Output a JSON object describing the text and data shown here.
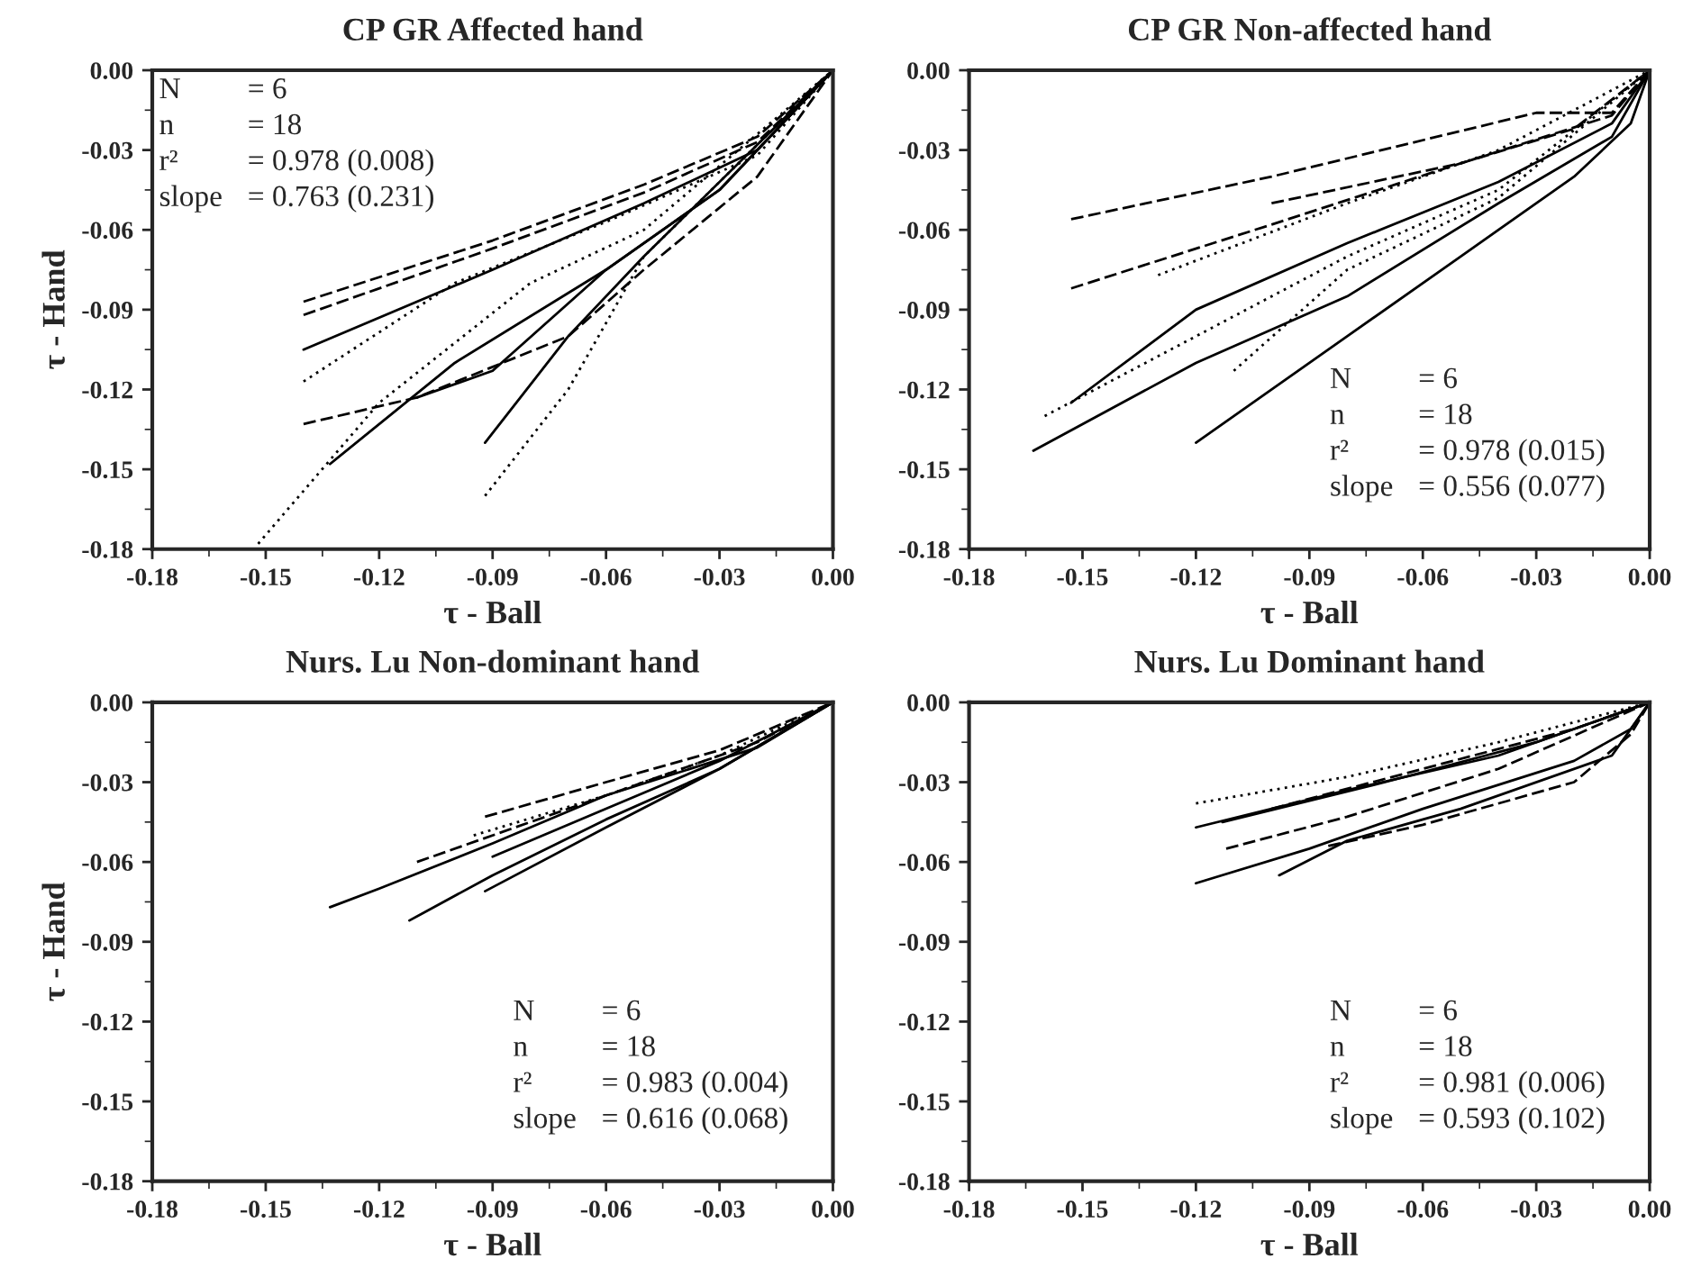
{
  "chart_data": [
    {
      "type": "line",
      "title": "CP GR Affected hand",
      "xlabel": "τ - Ball",
      "ylabel": "τ - Hand",
      "xlim": [
        -0.18,
        0
      ],
      "ylim": [
        -0.18,
        0
      ],
      "xticks": [
        {
          "value": -0.18,
          "label": "-0.18"
        },
        {
          "value": -0.15,
          "label": "-0.15"
        },
        {
          "value": -0.12,
          "label": "-0.12"
        },
        {
          "value": -0.09,
          "label": "-0.09"
        },
        {
          "value": -0.06,
          "label": "-0.06"
        },
        {
          "value": -0.03,
          "label": "-0.03"
        },
        {
          "value": 0,
          "label": "0.00"
        }
      ],
      "yticks": [
        {
          "value": -0.18,
          "label": "-0.18"
        },
        {
          "value": -0.15,
          "label": "-0.15"
        },
        {
          "value": -0.12,
          "label": "-0.12"
        },
        {
          "value": -0.09,
          "label": "-0.09"
        },
        {
          "value": -0.06,
          "label": "-0.06"
        },
        {
          "value": -0.03,
          "label": "-0.03"
        },
        {
          "value": 0,
          "label": "0.00"
        }
      ],
      "grid": false,
      "marker": "none",
      "annotations": [
        "N = 6",
        "n = 18",
        "r² = 0.978 (0.008)",
        "slope = 0.763 (0.231)"
      ],
      "series": [
        {
          "color": "#000000",
          "line_style": "dashed",
          "x": [
            -0.14,
            -0.09,
            -0.05,
            -0.02,
            0
          ],
          "values": [
            -0.087,
            -0.064,
            -0.043,
            -0.025,
            0
          ]
        },
        {
          "color": "#000000",
          "line_style": "dashed",
          "x": [
            -0.14,
            -0.09,
            -0.05,
            -0.02,
            0
          ],
          "values": [
            -0.092,
            -0.067,
            -0.046,
            -0.027,
            0
          ]
        },
        {
          "color": "#000000",
          "line_style": "solid",
          "x": [
            -0.14,
            -0.09,
            -0.05,
            -0.02,
            0
          ],
          "values": [
            -0.105,
            -0.075,
            -0.05,
            -0.03,
            0
          ]
        },
        {
          "color": "#000000",
          "line_style": "dotted",
          "x": [
            -0.14,
            -0.1,
            -0.06,
            -0.02,
            0
          ],
          "values": [
            -0.117,
            -0.08,
            -0.057,
            -0.032,
            0
          ]
        },
        {
          "color": "#000000",
          "line_style": "dashed",
          "x": [
            -0.14,
            -0.11,
            -0.07,
            -0.05,
            -0.02,
            0
          ],
          "values": [
            -0.133,
            -0.123,
            -0.1,
            -0.075,
            -0.04,
            0
          ]
        },
        {
          "color": "#000000",
          "line_style": "solid",
          "x": [
            -0.133,
            -0.1,
            -0.06,
            -0.03,
            0
          ],
          "values": [
            -0.148,
            -0.11,
            -0.075,
            -0.045,
            0
          ]
        },
        {
          "color": "#000000",
          "line_style": "dotted",
          "x": [
            -0.152,
            -0.12,
            -0.08,
            -0.05,
            0
          ],
          "values": [
            -0.178,
            -0.125,
            -0.08,
            -0.06,
            0
          ]
        },
        {
          "color": "#000000",
          "line_style": "solid",
          "x": [
            -0.11,
            -0.09,
            -0.06,
            -0.03,
            0
          ],
          "values": [
            -0.123,
            -0.113,
            -0.075,
            -0.045,
            0
          ]
        },
        {
          "color": "#000000",
          "line_style": "solid",
          "x": [
            -0.092,
            -0.07,
            -0.05,
            0
          ],
          "values": [
            -0.14,
            -0.1,
            -0.07,
            0
          ]
        },
        {
          "color": "#000000",
          "line_style": "dotted",
          "x": [
            -0.092,
            -0.07,
            -0.05,
            0
          ],
          "values": [
            -0.16,
            -0.12,
            -0.07,
            0
          ]
        }
      ]
    },
    {
      "type": "line",
      "title": "CP GR Non-affected hand",
      "xlabel": "τ - Ball",
      "xlim": [
        -0.18,
        0
      ],
      "ylim": [
        -0.18,
        0
      ],
      "xticks": [
        {
          "value": -0.18,
          "label": "-0.18"
        },
        {
          "value": -0.15,
          "label": "-0.15"
        },
        {
          "value": -0.12,
          "label": "-0.12"
        },
        {
          "value": -0.09,
          "label": "-0.09"
        },
        {
          "value": -0.06,
          "label": "-0.06"
        },
        {
          "value": -0.03,
          "label": "-0.03"
        },
        {
          "value": 0,
          "label": "0.00"
        }
      ],
      "yticks": [
        {
          "value": -0.18,
          "label": "-0.18"
        },
        {
          "value": -0.15,
          "label": "-0.15"
        },
        {
          "value": -0.12,
          "label": "-0.12"
        },
        {
          "value": -0.09,
          "label": "-0.09"
        },
        {
          "value": -0.06,
          "label": "-0.06"
        },
        {
          "value": -0.03,
          "label": "-0.03"
        },
        {
          "value": 0,
          "label": "0.00"
        }
      ],
      "grid": false,
      "marker": "none",
      "annotations": [
        "N = 6",
        "n = 18",
        "r² = 0.978 (0.015)",
        "slope = 0.556 (0.077)"
      ],
      "series": [
        {
          "color": "#000000",
          "line_style": "dashed",
          "x": [
            -0.153,
            -0.1,
            -0.03,
            -0.01,
            0
          ],
          "values": [
            -0.056,
            -0.04,
            -0.016,
            -0.016,
            0
          ]
        },
        {
          "color": "#000000",
          "line_style": "dashed",
          "x": [
            -0.153,
            -0.1,
            -0.05,
            -0.01,
            0
          ],
          "values": [
            -0.082,
            -0.058,
            -0.035,
            -0.017,
            0
          ]
        },
        {
          "color": "#000000",
          "line_style": "dotted",
          "x": [
            -0.13,
            -0.08,
            -0.04,
            0
          ],
          "values": [
            -0.077,
            -0.05,
            -0.03,
            0
          ]
        },
        {
          "color": "#000000",
          "line_style": "solid",
          "x": [
            -0.153,
            -0.12,
            -0.08,
            -0.04,
            -0.01,
            0
          ],
          "values": [
            -0.125,
            -0.09,
            -0.065,
            -0.042,
            -0.02,
            0
          ]
        },
        {
          "color": "#000000",
          "line_style": "dotted",
          "x": [
            -0.16,
            -0.12,
            -0.08,
            -0.04,
            0
          ],
          "values": [
            -0.13,
            -0.1,
            -0.07,
            -0.045,
            0
          ]
        },
        {
          "color": "#000000",
          "line_style": "solid",
          "x": [
            -0.163,
            -0.12,
            -0.08,
            -0.04,
            -0.01,
            0
          ],
          "values": [
            -0.143,
            -0.11,
            -0.085,
            -0.05,
            -0.025,
            0
          ]
        },
        {
          "color": "#000000",
          "line_style": "dotted",
          "x": [
            -0.11,
            -0.08,
            -0.04,
            0
          ],
          "values": [
            -0.113,
            -0.075,
            -0.048,
            0
          ]
        },
        {
          "color": "#000000",
          "line_style": "solid",
          "x": [
            -0.12,
            -0.08,
            -0.05,
            -0.02,
            -0.005,
            0
          ],
          "values": [
            -0.14,
            -0.1,
            -0.07,
            -0.04,
            -0.02,
            0
          ]
        },
        {
          "color": "#000000",
          "line_style": "dashed",
          "x": [
            -0.1,
            -0.05,
            -0.02,
            0
          ],
          "values": [
            -0.05,
            -0.035,
            -0.022,
            0
          ]
        }
      ]
    },
    {
      "type": "line",
      "title": "Nurs. Lu Non-dominant hand",
      "xlabel": "τ - Ball",
      "ylabel": "τ - Hand",
      "xlim": [
        -0.18,
        0
      ],
      "ylim": [
        -0.18,
        0
      ],
      "xticks": [
        {
          "value": -0.18,
          "label": "-0.18"
        },
        {
          "value": -0.15,
          "label": "-0.15"
        },
        {
          "value": -0.12,
          "label": "-0.12"
        },
        {
          "value": -0.09,
          "label": "-0.09"
        },
        {
          "value": -0.06,
          "label": "-0.06"
        },
        {
          "value": -0.03,
          "label": "-0.03"
        },
        {
          "value": 0,
          "label": "0.00"
        }
      ],
      "yticks": [
        {
          "value": -0.18,
          "label": "-0.18"
        },
        {
          "value": -0.15,
          "label": "-0.15"
        },
        {
          "value": -0.12,
          "label": "-0.12"
        },
        {
          "value": -0.09,
          "label": "-0.09"
        },
        {
          "value": -0.06,
          "label": "-0.06"
        },
        {
          "value": -0.03,
          "label": "-0.03"
        },
        {
          "value": 0,
          "label": "0.00"
        }
      ],
      "grid": false,
      "marker": "none",
      "annotations": [
        "N = 6",
        "n = 18",
        "r² = 0.983 (0.004)",
        "slope = 0.616 (0.068)"
      ],
      "series": [
        {
          "color": "#000000",
          "line_style": "solid",
          "x": [
            -0.133,
            -0.12,
            -0.09,
            -0.06,
            -0.02,
            0
          ],
          "values": [
            -0.077,
            -0.07,
            -0.053,
            -0.035,
            -0.017,
            0
          ]
        },
        {
          "color": "#000000",
          "line_style": "solid",
          "x": [
            -0.112,
            -0.09,
            -0.06,
            -0.03,
            0
          ],
          "values": [
            -0.082,
            -0.065,
            -0.044,
            -0.025,
            0
          ]
        },
        {
          "color": "#000000",
          "line_style": "solid",
          "x": [
            -0.092,
            -0.06,
            -0.03,
            0
          ],
          "values": [
            -0.071,
            -0.047,
            -0.025,
            0
          ]
        },
        {
          "color": "#000000",
          "line_style": "dashed",
          "x": [
            -0.092,
            -0.06,
            -0.03,
            0
          ],
          "values": [
            -0.043,
            -0.03,
            -0.018,
            0
          ]
        },
        {
          "color": "#000000",
          "line_style": "dashed",
          "x": [
            -0.11,
            -0.08,
            -0.05,
            -0.02,
            0
          ],
          "values": [
            -0.06,
            -0.045,
            -0.03,
            -0.015,
            0
          ]
        },
        {
          "color": "#000000",
          "line_style": "dotted",
          "x": [
            -0.095,
            -0.06,
            -0.03,
            0
          ],
          "values": [
            -0.05,
            -0.035,
            -0.02,
            0
          ]
        },
        {
          "color": "#000000",
          "line_style": "solid",
          "x": [
            -0.09,
            -0.06,
            -0.03,
            0
          ],
          "values": [
            -0.058,
            -0.04,
            -0.022,
            0
          ]
        }
      ]
    },
    {
      "type": "line",
      "title": "Nurs. Lu Dominant hand",
      "xlabel": "τ - Ball",
      "xlim": [
        -0.18,
        0
      ],
      "ylim": [
        -0.18,
        0
      ],
      "xticks": [
        {
          "value": -0.18,
          "label": "-0.18"
        },
        {
          "value": -0.15,
          "label": "-0.15"
        },
        {
          "value": -0.12,
          "label": "-0.12"
        },
        {
          "value": -0.09,
          "label": "-0.09"
        },
        {
          "value": -0.06,
          "label": "-0.06"
        },
        {
          "value": -0.03,
          "label": "-0.03"
        },
        {
          "value": 0,
          "label": "0.00"
        }
      ],
      "yticks": [
        {
          "value": -0.18,
          "label": "-0.18"
        },
        {
          "value": -0.15,
          "label": "-0.15"
        },
        {
          "value": -0.12,
          "label": "-0.12"
        },
        {
          "value": -0.09,
          "label": "-0.09"
        },
        {
          "value": -0.06,
          "label": "-0.06"
        },
        {
          "value": -0.03,
          "label": "-0.03"
        },
        {
          "value": 0,
          "label": "0.00"
        }
      ],
      "grid": false,
      "marker": "none",
      "annotations": [
        "N = 6",
        "n = 18",
        "r² = 0.981 (0.006)",
        "slope = 0.593 (0.102)"
      ],
      "series": [
        {
          "color": "#000000",
          "line_style": "dotted",
          "x": [
            -0.12,
            -0.08,
            -0.04,
            0
          ],
          "values": [
            -0.038,
            -0.028,
            -0.015,
            0
          ]
        },
        {
          "color": "#000000",
          "line_style": "solid",
          "x": [
            -0.12,
            -0.08,
            -0.04,
            0
          ],
          "values": [
            -0.047,
            -0.033,
            -0.02,
            0
          ]
        },
        {
          "color": "#000000",
          "line_style": "solid",
          "x": [
            -0.113,
            -0.07,
            -0.03,
            0
          ],
          "values": [
            -0.045,
            -0.03,
            -0.015,
            0
          ]
        },
        {
          "color": "#000000",
          "line_style": "dashed",
          "x": [
            -0.112,
            -0.08,
            -0.04,
            0
          ],
          "values": [
            -0.055,
            -0.043,
            -0.025,
            0
          ]
        },
        {
          "color": "#000000",
          "line_style": "solid",
          "x": [
            -0.12,
            -0.09,
            -0.06,
            -0.02,
            -0.005,
            0
          ],
          "values": [
            -0.068,
            -0.055,
            -0.04,
            -0.022,
            -0.01,
            0
          ]
        },
        {
          "color": "#000000",
          "line_style": "solid",
          "x": [
            -0.098,
            -0.08,
            -0.05,
            -0.01,
            0
          ],
          "values": [
            -0.065,
            -0.052,
            -0.04,
            -0.02,
            0
          ]
        },
        {
          "color": "#000000",
          "line_style": "dashed",
          "x": [
            -0.085,
            -0.06,
            -0.02,
            -0.005,
            0
          ],
          "values": [
            -0.054,
            -0.046,
            -0.03,
            -0.012,
            0
          ]
        },
        {
          "color": "#000000",
          "line_style": "dashed",
          "x": [
            -0.1,
            -0.06,
            -0.02,
            0
          ],
          "values": [
            -0.04,
            -0.025,
            -0.01,
            0
          ]
        }
      ]
    }
  ]
}
